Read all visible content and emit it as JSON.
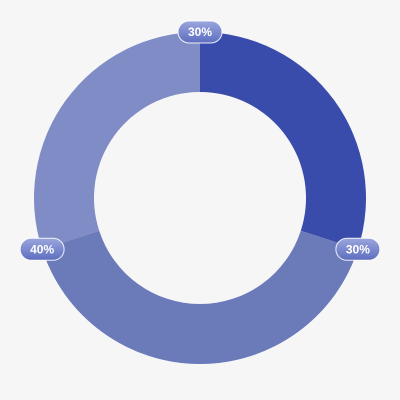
{
  "chart_data": {
    "type": "pie",
    "variant": "donut",
    "slices": [
      {
        "label": "30%",
        "value": 30,
        "color": "#3a4cab"
      },
      {
        "label": "40%",
        "value": 40,
        "color": "#6b7ab9"
      },
      {
        "label": "30%",
        "value": 30,
        "color": "#7f8cc6"
      }
    ],
    "start_angle_deg": 0,
    "direction": "clockwise",
    "legend": "none",
    "background_color": "#f6f6f7"
  }
}
